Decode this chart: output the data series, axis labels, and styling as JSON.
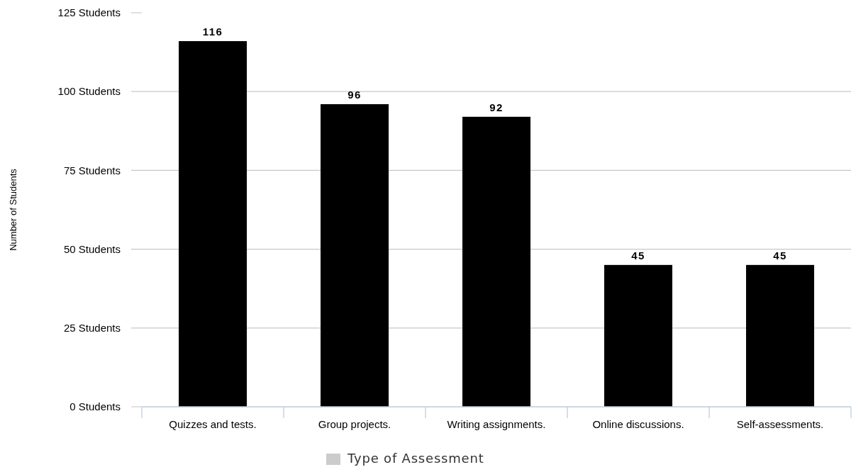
{
  "chart_data": {
    "type": "bar",
    "ylabel": "Number of Students",
    "categories": [
      "Quizzes and tests.",
      "Group projects.",
      "Writing assignments.",
      "Online discussions.",
      "Self-assessments."
    ],
    "series": [
      {
        "name": "Type of Assessment",
        "color": "#000000",
        "values": [
          116,
          96,
          92,
          45,
          45
        ]
      }
    ],
    "ylim": [
      0,
      125
    ],
    "yticks": [
      {
        "value": 0,
        "label": "0 Students"
      },
      {
        "value": 25,
        "label": "25 Students"
      },
      {
        "value": 50,
        "label": "50 Students"
      },
      {
        "value": 75,
        "label": "75 Students"
      },
      {
        "value": 100,
        "label": "100 Students"
      },
      {
        "value": 125,
        "label": "125 Students"
      }
    ],
    "grid": "y",
    "data_labels": true,
    "legend": "bottom"
  }
}
